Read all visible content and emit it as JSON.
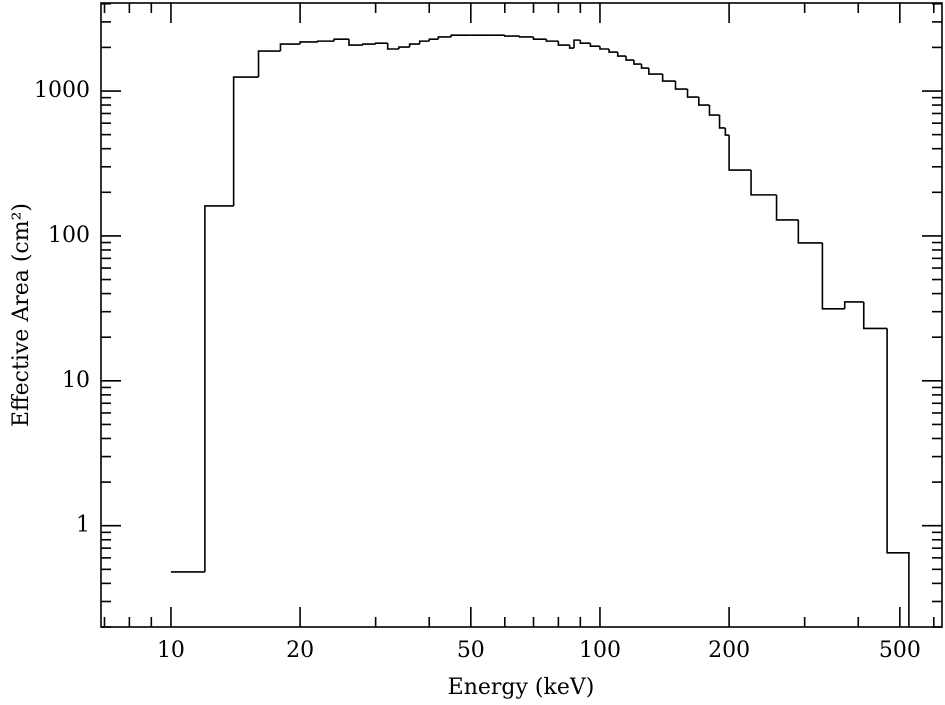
{
  "chart_data": {
    "type": "histogram",
    "xlabel": "Energy (keV)",
    "ylabel": "Effective Area (cm²)",
    "xscale": "log",
    "yscale": "log",
    "color": "#000000",
    "xlim": [
      6.87,
      627
    ],
    "ylim": [
      0.2,
      4050
    ],
    "xticks": [
      10,
      20,
      50,
      100,
      200,
      500
    ],
    "xminorticks": [
      7,
      8,
      9,
      30,
      40,
      60,
      70,
      80,
      90,
      300,
      400,
      600
    ],
    "yticks": [
      1,
      10,
      100,
      1000
    ],
    "yminorticks": [
      0.2,
      0.3,
      0.4,
      0.5,
      0.6,
      0.7,
      0.8,
      0.9,
      2,
      3,
      4,
      5,
      6,
      7,
      8,
      9,
      20,
      30,
      40,
      50,
      60,
      70,
      80,
      90,
      200,
      300,
      400,
      500,
      600,
      700,
      800,
      900,
      2000,
      3000,
      4000
    ],
    "bins": [
      10,
      12,
      14,
      16,
      18,
      20,
      22,
      24,
      26,
      28,
      30,
      32,
      34,
      36,
      38,
      40,
      42,
      45,
      50,
      55,
      60,
      65,
      70,
      75,
      80,
      85,
      87,
      90,
      95,
      100,
      105,
      110,
      115,
      120,
      125,
      130,
      140,
      150,
      160,
      170,
      180,
      190,
      196,
      200,
      225,
      258,
      290,
      330,
      372,
      412,
      467,
      525
    ],
    "values": [
      0.48,
      161,
      1249,
      1888,
      2110,
      2180,
      2210,
      2280,
      2075,
      2110,
      2140,
      1950,
      2010,
      2110,
      2210,
      2280,
      2360,
      2430,
      2430,
      2430,
      2395,
      2360,
      2280,
      2210,
      2075,
      1980,
      2245,
      2140,
      2040,
      1950,
      1858,
      1743,
      1636,
      1535,
      1440,
      1310,
      1172,
      1032,
      909,
      800,
      683,
      556,
      497,
      285,
      192,
      129,
      89.5,
      31.4,
      35,
      23,
      0.65
    ]
  }
}
